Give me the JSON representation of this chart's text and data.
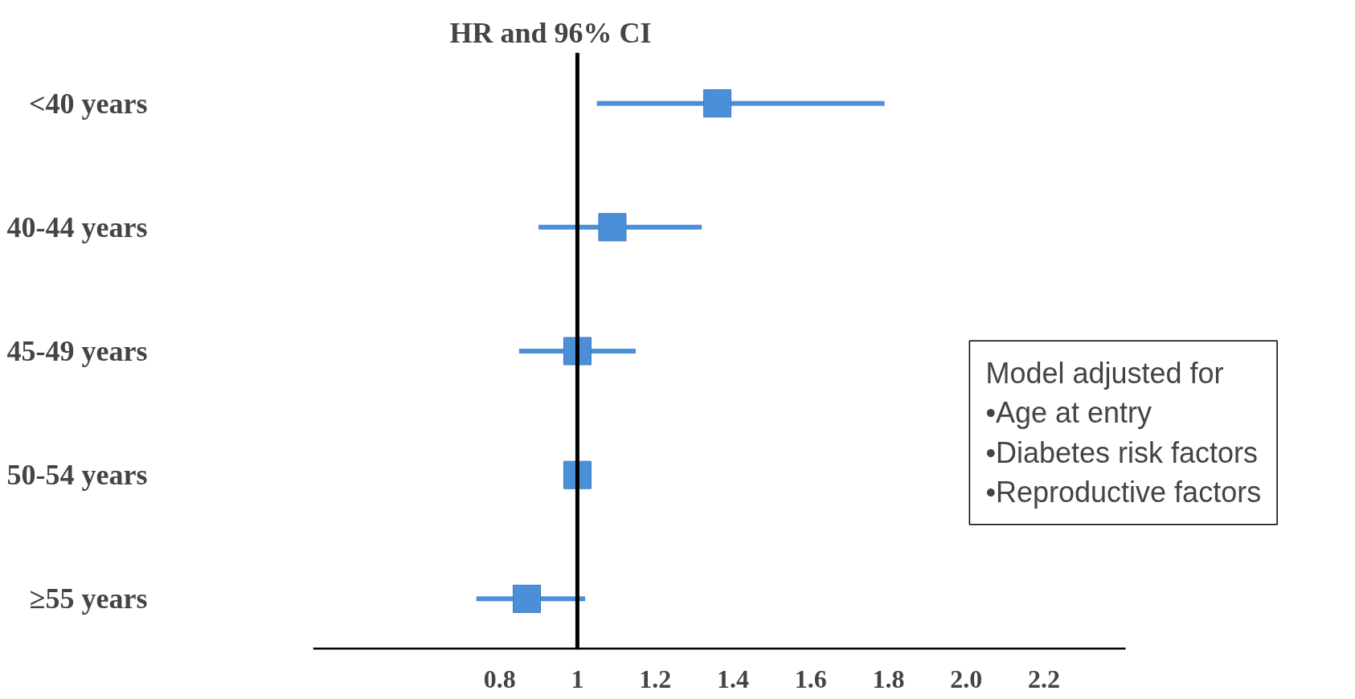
{
  "chart_data": {
    "type": "scatter",
    "orientation": "horizontal",
    "title": "HR and 96% CI",
    "categories": [
      "<40 years",
      "40-44 years",
      "45-49 years",
      "50-54 years",
      "≥55 years"
    ],
    "series": [
      {
        "color": "#4a8fd8",
        "values": [
          1.36,
          1.09,
          1.0,
          1.0,
          0.87
        ],
        "errors": [
          [
            1.05,
            1.79
          ],
          [
            0.9,
            1.32
          ],
          [
            0.85,
            1.15
          ],
          null,
          [
            0.74,
            1.02
          ]
        ]
      }
    ],
    "xlim": [
      0.32,
      2.41
    ],
    "xticks": [
      0.8,
      1,
      1.2,
      1.4,
      1.6,
      1.8,
      {
        "value": 2.0,
        "label": "2.0"
      },
      2.2
    ],
    "ref_lines": [
      {
        "axis": "x",
        "value": 1,
        "color": "#000000"
      }
    ],
    "marker": "square",
    "grid": false,
    "annotations": [
      "Model adjusted for",
      "•Age at entry",
      "•Diabetes risk factors",
      "•Reproductive factors"
    ]
  }
}
